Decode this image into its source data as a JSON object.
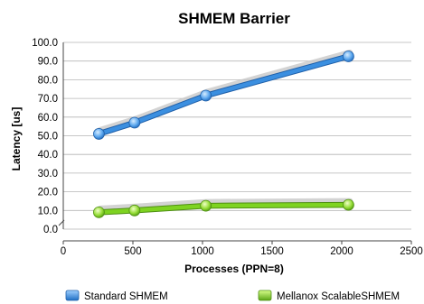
{
  "chart_data": {
    "type": "line",
    "title": "SHMEM Barrier",
    "xlabel": "Processes (PPN=8)",
    "ylabel": "Latency [us]",
    "xlim": [
      0,
      2500
    ],
    "ylim": [
      0,
      100
    ],
    "x_ticks": [
      0,
      500,
      1000,
      1500,
      2000,
      2500
    ],
    "y_ticks": [
      0,
      10,
      20,
      30,
      40,
      50,
      60,
      70,
      80,
      90,
      100
    ],
    "x_tick_labels": [
      "0",
      "500",
      "1000",
      "1500",
      "2000",
      "2500"
    ],
    "y_tick_labels": [
      "0.0",
      "10.0",
      "20.0",
      "30.0",
      "40.0",
      "50.0",
      "60.0",
      "70.0",
      "80.0",
      "90.0",
      "100.0"
    ],
    "grid": "horizontal",
    "legend_position": "bottom",
    "series": [
      {
        "name": "Standard SHMEM",
        "color": "#3b8fe0",
        "x": [
          256,
          512,
          1024,
          2048
        ],
        "y": [
          51,
          57,
          71.5,
          92.5
        ]
      },
      {
        "name": "Mellanox ScalableSHMEM",
        "color": "#7ed321",
        "x": [
          256,
          512,
          1024,
          2048
        ],
        "y": [
          9,
          10,
          12.5,
          13
        ]
      }
    ]
  }
}
